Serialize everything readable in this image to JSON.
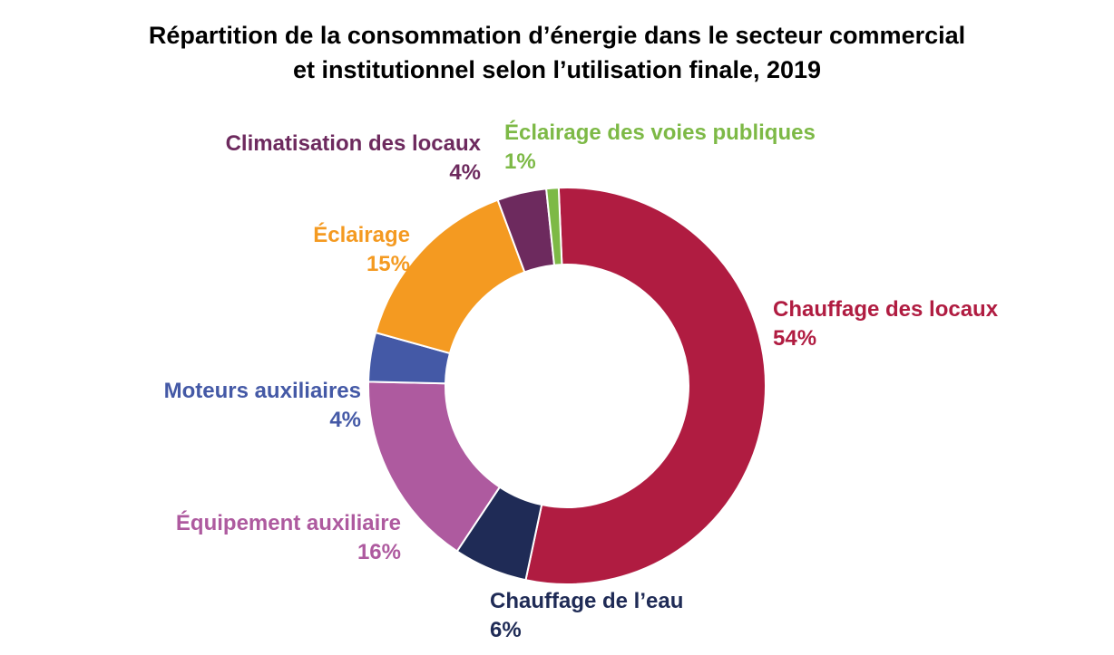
{
  "chart_data": {
    "type": "pie",
    "style": "donut",
    "title": "Répartition de la consommation d’énergie dans le secteur commercial et institutionnel selon l’utilisation finale, 2019",
    "title_lines": [
      "Répartition de la consommation d’énergie dans le secteur commercial",
      "et institutionnel selon l’utilisation finale, 2019"
    ],
    "slices": [
      {
        "key": "chauffage_locaux",
        "name": "Chauffage des locaux",
        "value": 54,
        "pct_label": "54%",
        "color": "#B01C41"
      },
      {
        "key": "chauffage_eau",
        "name": "Chauffage de l’eau",
        "value": 6,
        "pct_label": "6%",
        "color": "#1F2B56"
      },
      {
        "key": "equipement",
        "name": "Équipement auxiliaire",
        "value": 16,
        "pct_label": "16%",
        "color": "#AE5A9F"
      },
      {
        "key": "moteurs",
        "name": "Moteurs auxiliaires",
        "value": 4,
        "pct_label": "4%",
        "color": "#4459A6"
      },
      {
        "key": "eclairage",
        "name": "Éclairage",
        "value": 15,
        "pct_label": "15%",
        "color": "#F49A21"
      },
      {
        "key": "climatisation",
        "name": "Climatisation des locaux",
        "value": 4,
        "pct_label": "4%",
        "color": "#6D2A5E"
      },
      {
        "key": "voies_publiques",
        "name": "Éclairage des voies publiques",
        "value": 1,
        "pct_label": "1%",
        "color": "#7DB946"
      }
    ],
    "legend": "none",
    "data_labels": "outside"
  }
}
